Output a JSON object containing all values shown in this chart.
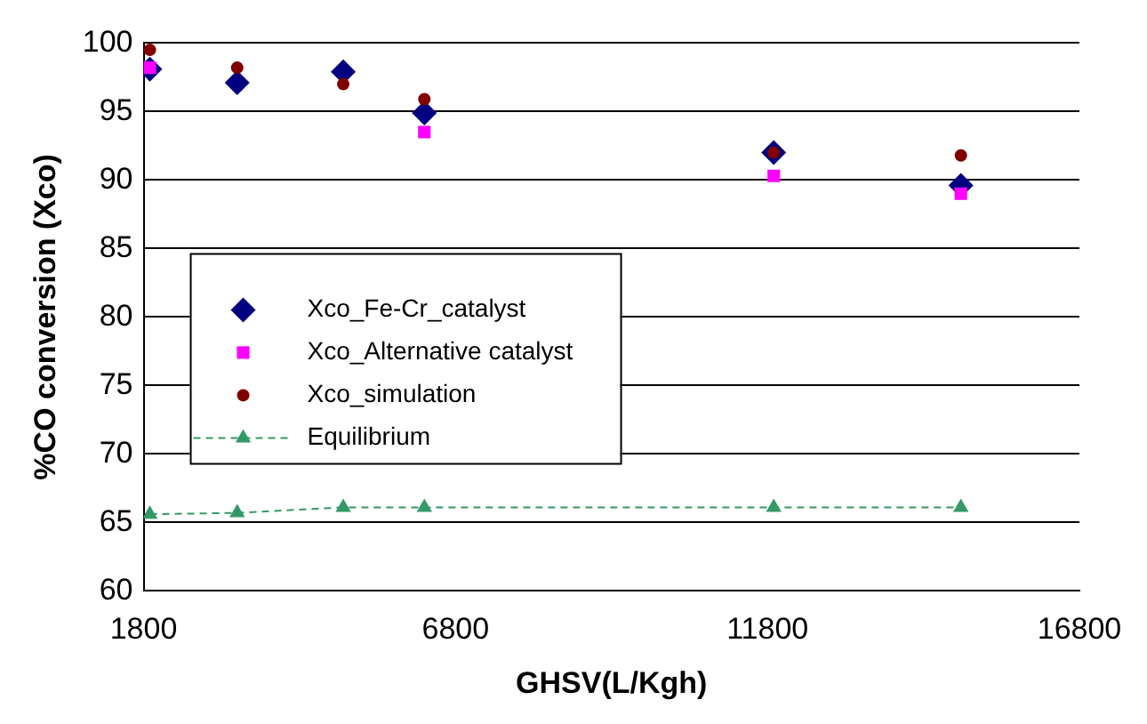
{
  "chart_data": {
    "type": "scatter",
    "xlabel": "GHSV(L/Kgh)",
    "ylabel": "%CO conversion (Xco)",
    "x": [
      1900,
      3300,
      5000,
      6300,
      11900,
      14900
    ],
    "series": [
      {
        "name": "Xco_Fe-Cr_catalyst",
        "color": "#000080",
        "marker": "diamond",
        "values": [
          98.1,
          97.1,
          97.9,
          94.9,
          92.0,
          89.6
        ]
      },
      {
        "name": "Xco_Alternative catalyst",
        "color": "#ff00ff",
        "marker": "square",
        "values": [
          98.2,
          null,
          null,
          93.5,
          90.3,
          89.0
        ]
      },
      {
        "name": "Xco_simulation",
        "color": "#800000",
        "marker": "circle",
        "values": [
          99.5,
          98.2,
          97.0,
          95.9,
          92.0,
          91.8
        ]
      },
      {
        "name": "Equilibrium",
        "type": "line",
        "color": "#339966",
        "marker": "triangle",
        "line_style": "dashed",
        "values": [
          65.6,
          65.7,
          66.1,
          66.1,
          66.1,
          66.1
        ]
      }
    ],
    "xlim": [
      1800,
      16800
    ],
    "xticks": [
      1800,
      6800,
      11800,
      16800
    ],
    "ylim": [
      60,
      100
    ],
    "yticks": [
      60,
      65,
      70,
      75,
      80,
      85,
      90,
      95,
      100
    ],
    "grid": "y",
    "legend": "left"
  }
}
